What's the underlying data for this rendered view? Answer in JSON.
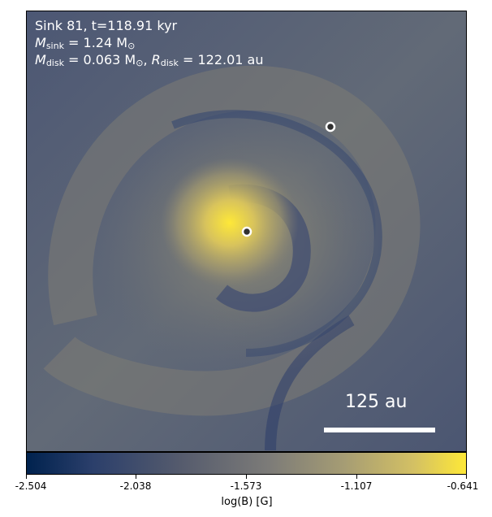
{
  "overlay": {
    "title": "Sink 81, t=118.91 kyr",
    "msink_symbol": "M",
    "msink_sub": "sink",
    "msink_value": "= 1.24 M",
    "msink_unit_sub": "⊙",
    "mdisk_symbol": "M",
    "mdisk_sub": "disk",
    "mdisk_value": "= 0.063 M",
    "mdisk_unit_sub": "⊙",
    "rdisk_symbol": "R",
    "rdisk_sub": "disk",
    "rdisk_value": "= 122.01 au"
  },
  "scale_bar": {
    "label": "125 au"
  },
  "colorbar": {
    "label": "log(B) [G]",
    "ticks": [
      "-2.504",
      "-2.038",
      "-1.573",
      "-1.107",
      "-0.641"
    ],
    "colormap": "cividis"
  },
  "colors": {
    "background": "#555f78",
    "bright": "#fee838",
    "dark": "#00224e"
  }
}
